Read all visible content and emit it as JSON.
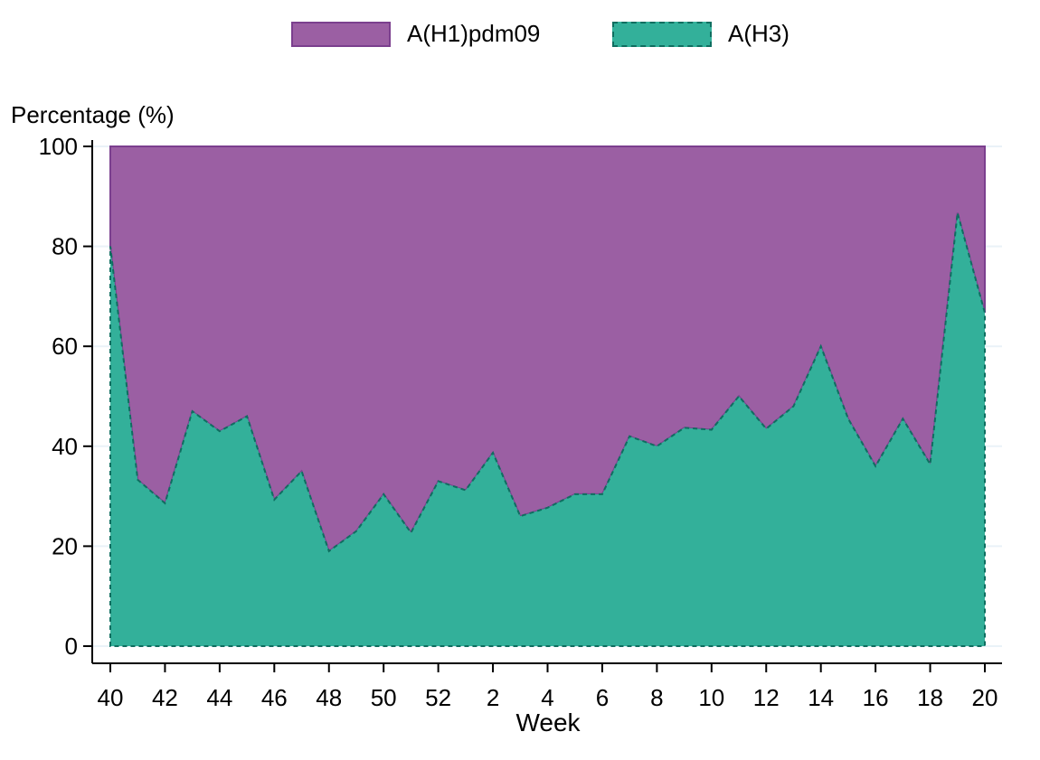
{
  "chart_data": {
    "type": "area",
    "stacked": true,
    "percent_stacked": true,
    "xlabel": "Week",
    "ylabel": "Percentage (%)",
    "ylim": [
      0,
      100
    ],
    "yticks": [
      0,
      20,
      40,
      60,
      80,
      100
    ],
    "x": [
      "40",
      "41",
      "42",
      "43",
      "44",
      "45",
      "46",
      "47",
      "48",
      "49",
      "50",
      "51",
      "52",
      "1",
      "2",
      "3",
      "4",
      "5",
      "6",
      "7",
      "8",
      "9",
      "10",
      "11",
      "12",
      "13",
      "14",
      "15",
      "16",
      "17",
      "18",
      "19",
      "20"
    ],
    "xtick_labels": [
      "40",
      "42",
      "44",
      "46",
      "48",
      "50",
      "52",
      "2",
      "4",
      "6",
      "8",
      "10",
      "12",
      "14",
      "16",
      "18",
      "20"
    ],
    "legend_position": "top-center",
    "grid": "horizontal",
    "series": [
      {
        "name": "A(H1)pdm09",
        "color": "#9b5fa3",
        "border": "#7b3f8e",
        "values": [
          20,
          66.7,
          71.4,
          53,
          57,
          54,
          70.7,
          65,
          81,
          77,
          69.6,
          77.3,
          67,
          68.8,
          61.3,
          74,
          72.3,
          69.6,
          69.6,
          58,
          60,
          56.3,
          56.7,
          50,
          56.5,
          52,
          40,
          54.5,
          64,
          54.5,
          63.6,
          13.3,
          33.3
        ]
      },
      {
        "name": "A(H3)",
        "color": "#33b09a",
        "border": "#0f6e60",
        "values": [
          80,
          33.3,
          28.6,
          47,
          43,
          46,
          29.3,
          35,
          19,
          23,
          30.4,
          22.7,
          33,
          31.2,
          38.7,
          26,
          27.7,
          30.4,
          30.4,
          42,
          40,
          43.7,
          43.3,
          50,
          43.5,
          48,
          60,
          45.5,
          36,
          45.5,
          36.4,
          86.7,
          66.7
        ]
      }
    ]
  }
}
